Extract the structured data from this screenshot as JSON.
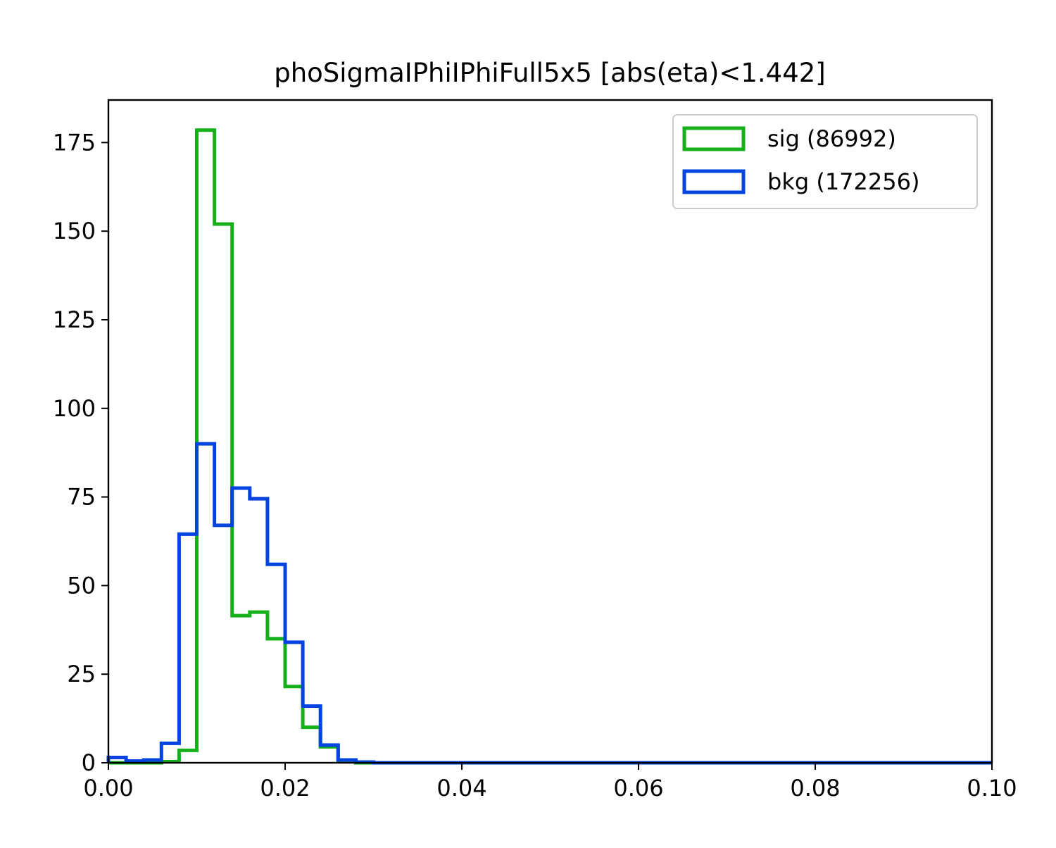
{
  "chart_data": {
    "type": "histogram-step",
    "title": "phoSigmaIPhiIPhiFull5x5 [abs(eta)<1.442]",
    "xlabel": "",
    "ylabel": "",
    "xlim": [
      0.0,
      0.1
    ],
    "ylim": [
      0,
      187
    ],
    "x_ticks": [
      0.0,
      0.02,
      0.04,
      0.06,
      0.08,
      0.1
    ],
    "x_tick_labels": [
      "0.00",
      "0.02",
      "0.04",
      "0.06",
      "0.08",
      "0.10"
    ],
    "y_ticks": [
      0,
      25,
      50,
      75,
      100,
      125,
      150,
      175
    ],
    "y_tick_labels": [
      "0",
      "25",
      "50",
      "75",
      "100",
      "125",
      "150",
      "175"
    ],
    "bin_width": 0.002,
    "grid": false,
    "legend": "top-right",
    "series": [
      {
        "name": "sig (86992)",
        "color": "#15b01a",
        "values": [
          0,
          0,
          0,
          0.3,
          3.5,
          178.5,
          152,
          41.5,
          42.5,
          35,
          21.5,
          10,
          4.5,
          0.5,
          0,
          0,
          0,
          0,
          0,
          0,
          0,
          0,
          0,
          0,
          0,
          0,
          0,
          0,
          0,
          0,
          0,
          0,
          0,
          0,
          0,
          0,
          0,
          0,
          0,
          0,
          0,
          0,
          0,
          0,
          0,
          0,
          0,
          0,
          0,
          0
        ]
      },
      {
        "name": "bkg (172256)",
        "color": "#0343df",
        "values": [
          1.5,
          0.5,
          0.8,
          5.5,
          64.5,
          90,
          67,
          77.5,
          74.5,
          56,
          34,
          16,
          5,
          0.8,
          0.2,
          0,
          0,
          0,
          0,
          0,
          0,
          0,
          0,
          0,
          0,
          0,
          0,
          0,
          0,
          0,
          0,
          0,
          0,
          0,
          0,
          0,
          0,
          0,
          0,
          0,
          0,
          0,
          0,
          0,
          0,
          0,
          0,
          0,
          0,
          0
        ]
      }
    ]
  }
}
